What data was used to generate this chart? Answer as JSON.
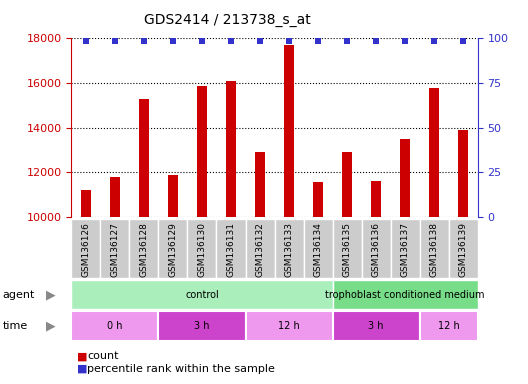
{
  "title": "GDS2414 / 213738_s_at",
  "samples": [
    "GSM136126",
    "GSM136127",
    "GSM136128",
    "GSM136129",
    "GSM136130",
    "GSM136131",
    "GSM136132",
    "GSM136133",
    "GSM136134",
    "GSM136135",
    "GSM136136",
    "GSM136137",
    "GSM136138",
    "GSM136139"
  ],
  "counts": [
    11200,
    11800,
    15300,
    11900,
    15850,
    16100,
    12900,
    17700,
    11550,
    12900,
    11600,
    13500,
    15800,
    13900
  ],
  "bar_color": "#cc0000",
  "dot_color": "#3333cc",
  "ylim_left": [
    10000,
    18000
  ],
  "ylim_right": [
    0,
    100
  ],
  "yticks_left": [
    10000,
    12000,
    14000,
    16000,
    18000
  ],
  "yticks_right": [
    0,
    25,
    50,
    75,
    100
  ],
  "agent_segments": [
    {
      "text": "control",
      "start": 0,
      "end": 8,
      "color": "#aaeebb"
    },
    {
      "text": "trophoblast conditioned medium",
      "start": 9,
      "end": 13,
      "color": "#77dd88"
    }
  ],
  "time_segments": [
    {
      "text": "0 h",
      "start": 0,
      "end": 2,
      "color": "#ee99ee"
    },
    {
      "text": "3 h",
      "start": 3,
      "end": 5,
      "color": "#cc44cc"
    },
    {
      "text": "12 h",
      "start": 6,
      "end": 8,
      "color": "#ee99ee"
    },
    {
      "text": "3 h",
      "start": 9,
      "end": 11,
      "color": "#cc44cc"
    },
    {
      "text": "12 h",
      "start": 12,
      "end": 13,
      "color": "#ee99ee"
    }
  ],
  "legend_count_color": "#cc0000",
  "legend_dot_color": "#3333cc",
  "label_bg_color": "#cccccc",
  "fig_width": 5.28,
  "fig_height": 3.84,
  "dpi": 100
}
